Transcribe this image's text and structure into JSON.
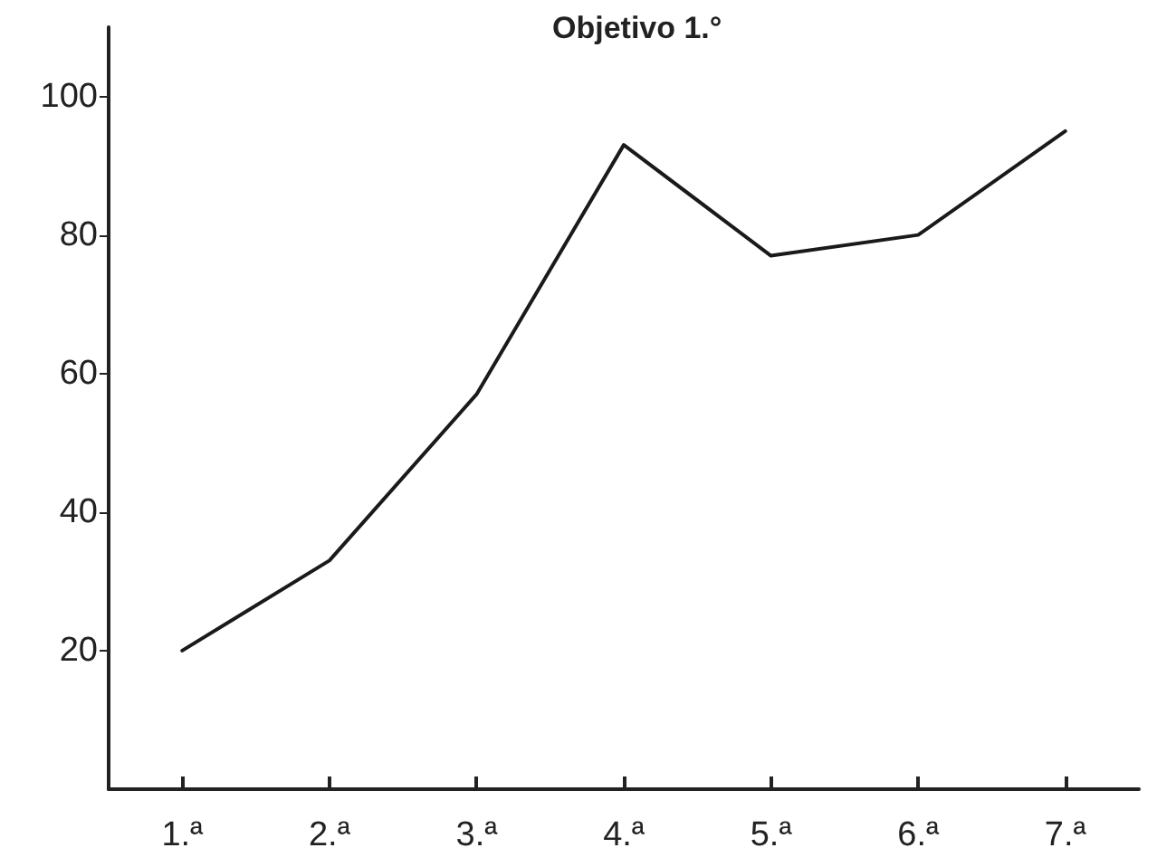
{
  "chart_data": {
    "type": "line",
    "title": "Objetivo 1.°",
    "categories": [
      "1.ª",
      "2.ª",
      "3.ª",
      "4.ª",
      "5.ª",
      "6.ª",
      "7.ª"
    ],
    "series": [
      {
        "color": "#1a1a1a",
        "values": [
          20,
          33,
          57,
          93,
          77,
          80,
          95
        ]
      }
    ],
    "ylim": [
      0,
      110
    ],
    "yticks": [
      20,
      40,
      60,
      80,
      100
    ],
    "grid": false,
    "marker": "none",
    "line_style": "solid"
  }
}
